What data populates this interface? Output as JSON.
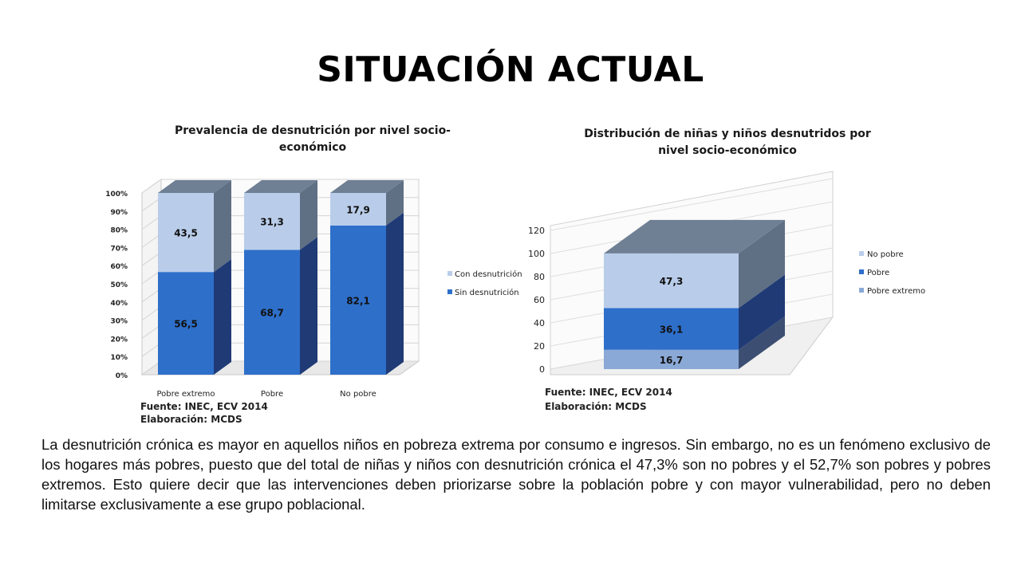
{
  "slide": {
    "title": "SITUACIÓN ACTUAL",
    "body": "La desnutrición crónica es mayor en aquellos niños en pobreza extrema por consumo e ingresos. Sin embargo, no es un fenómeno exclusivo de los hogares más pobres, puesto que del total de niñas y niños con desnutrición crónica el 47,3% son no pobres y el 52,7%  son pobres y pobres extremos. Esto quiere decir que las intervenciones deben priorizarse sobre la población pobre y con mayor vulnerabilidad, pero no deben limitarse exclusivamente a ese grupo poblacional."
  },
  "colors": {
    "light_blue": "#b9cdea",
    "mid_blue": "#2e6fca",
    "pale_blue": "#8ba9d6",
    "side_dark": "#1f3a75",
    "top_gray": "#6f7f94"
  },
  "chart_data": [
    {
      "type": "bar",
      "stacked": true,
      "three_d": true,
      "title_lines": [
        "Prevalencia de desnutrición por nivel socio-",
        "económico"
      ],
      "categories": [
        "Pobre extremo",
        "Pobre",
        "No pobre"
      ],
      "series": [
        {
          "name": "Sin desnutrición",
          "values": [
            56.5,
            68.7,
            82.1
          ],
          "labels": [
            "56,5",
            "68,7",
            "82,1"
          ],
          "color": "#2e6fca"
        },
        {
          "name": "Con desnutrición",
          "values": [
            43.5,
            31.3,
            17.9
          ],
          "labels": [
            "43,5",
            "31,3",
            "17,9"
          ],
          "color": "#b9cdea"
        }
      ],
      "y_ticks": [
        "0%",
        "10%",
        "20%",
        "30%",
        "40%",
        "50%",
        "60%",
        "70%",
        "80%",
        "90%",
        "100%"
      ],
      "ylim": [
        0,
        100
      ],
      "legend_position": "right",
      "legend": [
        "Con desnutrición",
        "Sin desnutrición"
      ],
      "source_lines": [
        "Fuente: INEC, ECV 2014",
        "Elaboración: MCDS"
      ]
    },
    {
      "type": "bar",
      "stacked": true,
      "three_d": true,
      "title_lines": [
        "Distribución de niñas y niños desnutridos por",
        "nivel socio-económico"
      ],
      "categories": [
        ""
      ],
      "series": [
        {
          "name": "Pobre extremo",
          "values": [
            16.7
          ],
          "labels": [
            "16,7"
          ],
          "color": "#8ba9d6"
        },
        {
          "name": "Pobre",
          "values": [
            36.1
          ],
          "labels": [
            "36,1"
          ],
          "color": "#2e6fca"
        },
        {
          "name": "No pobre",
          "values": [
            47.3
          ],
          "labels": [
            "47,3"
          ],
          "color": "#b9cdea"
        }
      ],
      "y_ticks": [
        "0",
        "20",
        "40",
        "60",
        "80",
        "100",
        "120"
      ],
      "ylim": [
        0,
        120
      ],
      "legend_position": "right",
      "legend": [
        "No pobre",
        "Pobre",
        "Pobre extremo"
      ],
      "source_lines": [
        "Fuente: INEC, ECV 2014",
        "Elaboración: MCDS"
      ]
    }
  ]
}
